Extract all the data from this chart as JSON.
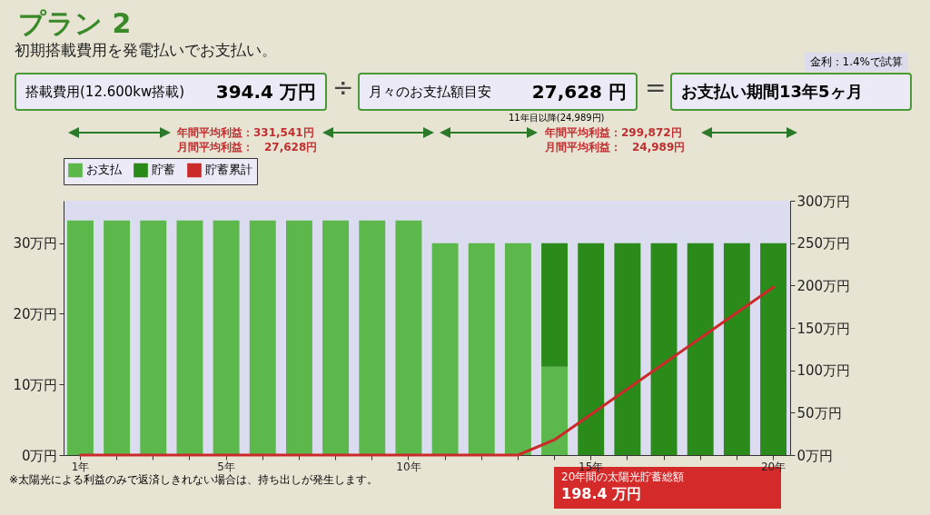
{
  "chart_data": {
    "type": "bar",
    "title": "プラン 2",
    "subtitle": "初期搭載費用を発電払いでお支払い。",
    "categories": [
      "1年",
      null,
      null,
      null,
      "5年",
      null,
      null,
      null,
      null,
      "10年",
      null,
      null,
      null,
      null,
      "15年",
      null,
      null,
      null,
      null,
      "20年"
    ],
    "stacked": true,
    "series": [
      {
        "name": "お支払",
        "color": "#5cb84a",
        "values": [
          33.2,
          33.2,
          33.2,
          33.2,
          33.2,
          33.2,
          33.2,
          33.2,
          33.2,
          33.2,
          30,
          30,
          30,
          12.5,
          null,
          null,
          null,
          null,
          null,
          null
        ]
      },
      {
        "name": "貯蓄",
        "color": "#2a8a1a",
        "values": [
          null,
          null,
          null,
          null,
          null,
          null,
          null,
          null,
          null,
          null,
          null,
          null,
          null,
          17.5,
          30,
          30,
          30,
          30,
          30,
          30
        ]
      },
      {
        "name": "貯蓄累計",
        "type": "line",
        "axis": "y2",
        "color": "#cc2a2a",
        "values": [
          0,
          0,
          0,
          0,
          0,
          0,
          0,
          0,
          0,
          0,
          0,
          0,
          0,
          18,
          48,
          78,
          108,
          138,
          168,
          198
        ]
      }
    ],
    "ylim": [
      0,
      36
    ],
    "yticks": [
      {
        "value": 0,
        "label": "0万円"
      },
      {
        "value": 10,
        "label": "10万円"
      },
      {
        "value": 20,
        "label": "20万円"
      },
      {
        "value": 30,
        "label": "30万円"
      }
    ],
    "y2lim": [
      0,
      300
    ],
    "y2ticks": [
      {
        "value": 0,
        "label": "0万円"
      },
      {
        "value": 50,
        "label": "50万円"
      },
      {
        "value": 100,
        "label": "100万円"
      },
      {
        "value": 150,
        "label": "150万円"
      },
      {
        "value": 200,
        "label": "200万円"
      },
      {
        "value": 250,
        "label": "250万円"
      },
      {
        "value": 300,
        "label": "300万円"
      }
    ],
    "legend": "top left",
    "annotations": [
      "金利：1.4%で試算",
      "搭載費用(12.600kw搭載)",
      "394.4 万円",
      "÷",
      "月々のお支払額目安",
      "27,628 円",
      "11年目以降(24,989円)",
      "=",
      "お支払い期間13年5ヶ月",
      "年間平均利益：331,541円",
      "月間平均利益：　27,628円",
      "年間平均利益：299,872円",
      "月間平均利益：　24,989円",
      "20年間の太陽光貯蓄総額",
      "198.4 万円",
      "※太陽光による利益のみで返済しきれない場合は、持ち出しが発生します。"
    ]
  }
}
